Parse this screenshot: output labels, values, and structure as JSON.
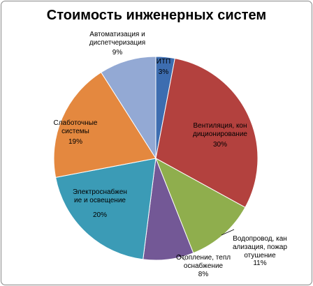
{
  "chart_data": {
    "type": "pie",
    "title": "Стоимость инженерных систем",
    "categories": [
      "ИТП",
      "Вентиляция, кон\nдиционирование",
      "Водопровод, кан\nализация, пожар\nотушение",
      "Отопление, тепл\nоснабжение",
      "Электроснабжен\nие и освещение",
      "Слаботочные\nсистемы",
      "Автоматизация и\nдиспетчеризация"
    ],
    "values": [
      3,
      30,
      11,
      8,
      20,
      19,
      9
    ],
    "value_labels": [
      "3%",
      "30%",
      "11%",
      "8%",
      "20%",
      "19%",
      "9%"
    ],
    "colors": [
      "#3d6db0",
      "#b3413e",
      "#8fae4d",
      "#735896",
      "#3b9bb6",
      "#e4883f",
      "#93a9d4"
    ]
  }
}
